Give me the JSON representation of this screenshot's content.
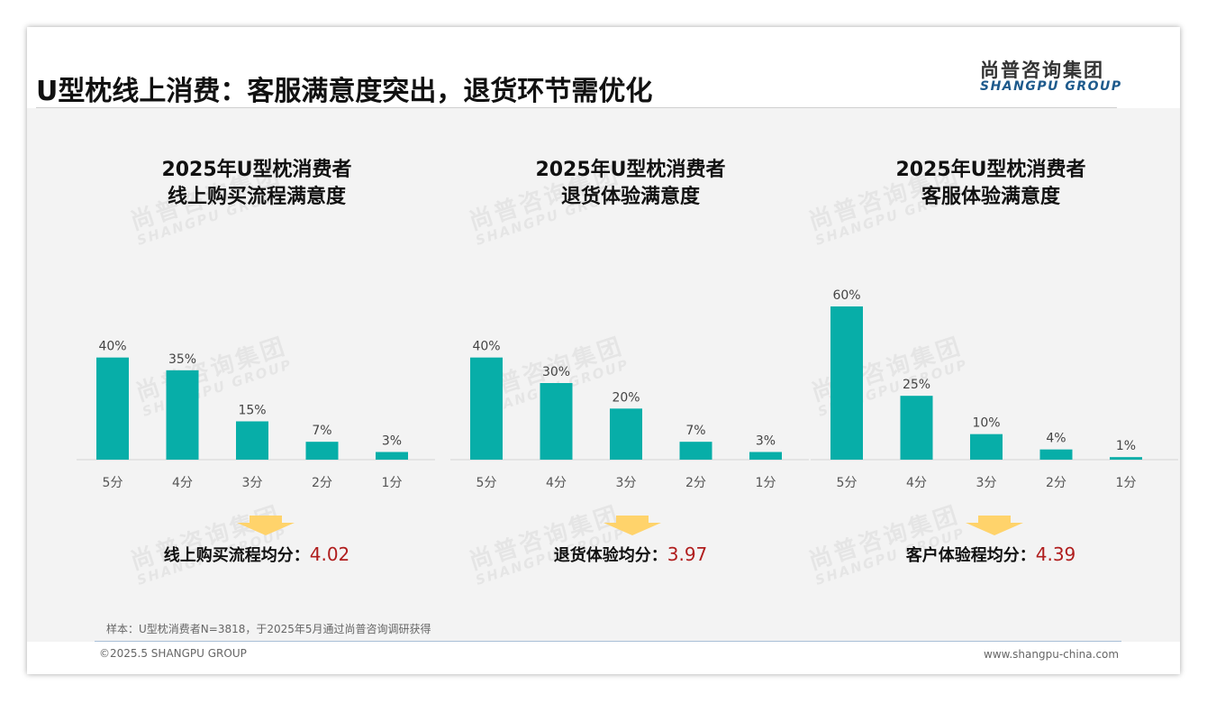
{
  "page": {
    "title": "U型枕线上消费：客服满意度突出，退货环节需优化",
    "logo_cn": "尚普咨询集团",
    "logo_en": "SHANGPU GROUP",
    "watermark_cn": "尚普咨询集团",
    "watermark_en": "SHANGPU GROUP",
    "note": "样本：U型枕消费者N=3818，于2025年5月通过尚普咨询调研获得",
    "copyright": "©2025.5 SHANGPU GROUP",
    "website": "www.shangpu-china.com"
  },
  "colors": {
    "bar": "#07aea8",
    "arrow": "#ffd36b",
    "avg_value": "#b01d1d",
    "logo_en": "#1e5a8c"
  },
  "panels": [
    {
      "title_line1": "2025年U型枕消费者",
      "title_line2": "线上购买流程满意度",
      "avg_label": "线上购买流程均分：",
      "avg_value": "4.02"
    },
    {
      "title_line1": "2025年U型枕消费者",
      "title_line2": "退货体验满意度",
      "avg_label": "退货体验均分：",
      "avg_value": "3.97"
    },
    {
      "title_line1": "2025年U型枕消费者",
      "title_line2": "客服体验满意度",
      "avg_label": "客户体验程均分：",
      "avg_value": "4.39"
    }
  ],
  "chart_data": [
    {
      "type": "bar",
      "title": "2025年U型枕消费者线上购买流程满意度",
      "categories": [
        "5分",
        "4分",
        "3分",
        "2分",
        "1分"
      ],
      "values": [
        40,
        35,
        15,
        7,
        3
      ],
      "labels": [
        "40%",
        "35%",
        "15%",
        "7%",
        "3%"
      ],
      "unit": "%",
      "ylim": [
        0,
        60
      ],
      "grid": false
    },
    {
      "type": "bar",
      "title": "2025年U型枕消费者退货体验满意度",
      "categories": [
        "5分",
        "4分",
        "3分",
        "2分",
        "1分"
      ],
      "values": [
        40,
        30,
        20,
        7,
        3
      ],
      "labels": [
        "40%",
        "30%",
        "20%",
        "7%",
        "3%"
      ],
      "unit": "%",
      "ylim": [
        0,
        60
      ],
      "grid": false
    },
    {
      "type": "bar",
      "title": "2025年U型枕消费者客服体验满意度",
      "categories": [
        "5分",
        "4分",
        "3分",
        "2分",
        "1分"
      ],
      "values": [
        60,
        25,
        10,
        4,
        1
      ],
      "labels": [
        "60%",
        "25%",
        "10%",
        "4%",
        "1%"
      ],
      "unit": "%",
      "ylim": [
        0,
        60
      ],
      "grid": false
    }
  ]
}
